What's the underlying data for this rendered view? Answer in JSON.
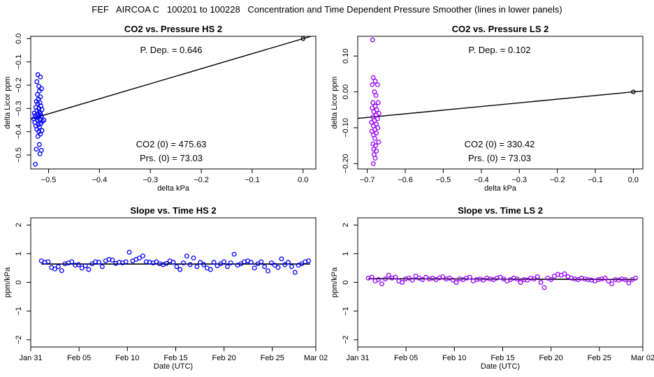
{
  "page_title": "FEF   AIRCOA C   100201 to 100228   Concentration and Time Dependent Pressure Smoother (lines in lower panels)",
  "colors": {
    "hs": "#0000ff",
    "ls": "#9900ff",
    "fit": "#000000"
  },
  "chart_data": [
    {
      "id": "p1",
      "type": "scatter",
      "title": "CO2 vs. Pressure HS 2",
      "xlabel": "delta kPa",
      "ylabel": "delta Licor ppm",
      "xlim": [
        -0.535,
        0.025
      ],
      "ylim": [
        -0.56,
        0.01
      ],
      "xticks": [
        -0.5,
        -0.4,
        -0.3,
        -0.2,
        -0.1,
        0.0
      ],
      "xtick_labels": [
        "−0.5",
        "−0.4",
        "−0.3",
        "−0.2",
        "−0.1",
        "0.0"
      ],
      "yticks": [
        0.0,
        -0.1,
        -0.2,
        -0.3,
        -0.4,
        -0.5
      ],
      "ytick_labels": [
        "0.0",
        "−0.1",
        "−0.2",
        "−0.3",
        "−0.4",
        "−0.5"
      ],
      "annotations": [
        "P. Dep. =  0.646",
        "CO2 (0) =  475.63",
        "Prs. (0) =  73.03"
      ],
      "fit_line": {
        "slope": 0.646,
        "intercept": 0.0
      },
      "anchor_point": [
        0.0,
        0.0
      ],
      "series": [
        {
          "name": "HS 2",
          "color": "hs",
          "points": [
            [
              -0.521,
              -0.155
            ],
            [
              -0.516,
              -0.165
            ],
            [
              -0.523,
              -0.185
            ],
            [
              -0.519,
              -0.205
            ],
            [
              -0.514,
              -0.215
            ],
            [
              -0.518,
              -0.225
            ],
            [
              -0.522,
              -0.24
            ],
            [
              -0.516,
              -0.25
            ],
            [
              -0.52,
              -0.26
            ],
            [
              -0.524,
              -0.27
            ],
            [
              -0.517,
              -0.275
            ],
            [
              -0.521,
              -0.28
            ],
            [
              -0.515,
              -0.29
            ],
            [
              -0.525,
              -0.295
            ],
            [
              -0.519,
              -0.3
            ],
            [
              -0.513,
              -0.305
            ],
            [
              -0.523,
              -0.31
            ],
            [
              -0.518,
              -0.315
            ],
            [
              -0.528,
              -0.32
            ],
            [
              -0.516,
              -0.322
            ],
            [
              -0.521,
              -0.325
            ],
            [
              -0.526,
              -0.33
            ],
            [
              -0.514,
              -0.333
            ],
            [
              -0.519,
              -0.335
            ],
            [
              -0.524,
              -0.34
            ],
            [
              -0.529,
              -0.345
            ],
            [
              -0.517,
              -0.348
            ],
            [
              -0.522,
              -0.35
            ],
            [
              -0.512,
              -0.355
            ],
            [
              -0.527,
              -0.36
            ],
            [
              -0.515,
              -0.365
            ],
            [
              -0.52,
              -0.37
            ],
            [
              -0.525,
              -0.375
            ],
            [
              -0.518,
              -0.38
            ],
            [
              -0.523,
              -0.39
            ],
            [
              -0.513,
              -0.395
            ],
            [
              -0.519,
              -0.4
            ],
            [
              -0.516,
              -0.41
            ],
            [
              -0.521,
              -0.42
            ],
            [
              -0.518,
              -0.455
            ],
            [
              -0.514,
              -0.48
            ],
            [
              -0.524,
              -0.475
            ],
            [
              -0.517,
              -0.495
            ],
            [
              -0.526,
              -0.54
            ],
            [
              -0.509,
              -0.35
            ]
          ]
        }
      ]
    },
    {
      "id": "p2",
      "type": "scatter",
      "title": "CO2 vs. Pressure LS 2",
      "xlabel": "delta kPa",
      "ylabel": "delta Licor ppm",
      "xlim": [
        -0.725,
        0.025
      ],
      "ylim": [
        -0.215,
        0.155
      ],
      "xticks": [
        -0.7,
        -0.6,
        -0.5,
        -0.4,
        -0.3,
        -0.2,
        -0.1,
        0.0
      ],
      "xtick_labels": [
        "−0.7",
        "−0.6",
        "−0.5",
        "−0.4",
        "−0.3",
        "−0.2",
        "−0.1",
        "0.0"
      ],
      "yticks": [
        0.1,
        0.0,
        -0.1,
        -0.2
      ],
      "ytick_labels": [
        "0.10",
        "0.00",
        "−0.10",
        "−0.20"
      ],
      "annotations": [
        "P. Dep. =  0.102",
        "CO2 (0) =  330.42",
        "Prs. (0) =  73.03"
      ],
      "fit_line": {
        "slope": 0.102,
        "intercept": 0.0
      },
      "anchor_point": [
        0.0,
        0.0
      ],
      "series": [
        {
          "name": "LS 2",
          "color": "ls",
          "points": [
            [
              -0.686,
              0.145
            ],
            [
              -0.684,
              0.04
            ],
            [
              -0.679,
              0.03
            ],
            [
              -0.687,
              0.02
            ],
            [
              -0.673,
              0.02
            ],
            [
              -0.681,
              0.0
            ],
            [
              -0.677,
              -0.01
            ],
            [
              -0.685,
              -0.03
            ],
            [
              -0.671,
              -0.03
            ],
            [
              -0.679,
              -0.04
            ],
            [
              -0.687,
              -0.045
            ],
            [
              -0.675,
              -0.05
            ],
            [
              -0.683,
              -0.055
            ],
            [
              -0.669,
              -0.06
            ],
            [
              -0.677,
              -0.065
            ],
            [
              -0.685,
              -0.07
            ],
            [
              -0.673,
              -0.075
            ],
            [
              -0.681,
              -0.08
            ],
            [
              -0.689,
              -0.085
            ],
            [
              -0.676,
              -0.09
            ],
            [
              -0.684,
              -0.095
            ],
            [
              -0.672,
              -0.1
            ],
            [
              -0.68,
              -0.105
            ],
            [
              -0.688,
              -0.11
            ],
            [
              -0.676,
              -0.115
            ],
            [
              -0.684,
              -0.12
            ],
            [
              -0.68,
              -0.13
            ],
            [
              -0.67,
              -0.14
            ],
            [
              -0.685,
              -0.145
            ],
            [
              -0.678,
              -0.15
            ],
            [
              -0.683,
              -0.16
            ],
            [
              -0.676,
              -0.165
            ],
            [
              -0.682,
              -0.175
            ],
            [
              -0.679,
              -0.185
            ],
            [
              -0.684,
              -0.2
            ]
          ]
        }
      ]
    },
    {
      "id": "p3",
      "type": "scatter",
      "title": "Slope vs. Time HS 2",
      "xlabel": "Date (UTC)",
      "ylabel": "ppm/kPa",
      "xlim": [
        0,
        29.5
      ],
      "ylim": [
        -2.25,
        2.25
      ],
      "xticks": [
        0,
        5,
        10,
        15,
        20,
        25,
        29.5
      ],
      "xtick_labels": [
        "Jan 31",
        "Feb 05",
        "Feb 10",
        "Feb 15",
        "Feb 20",
        "Feb 25",
        "Mar 02"
      ],
      "yticks": [
        -2,
        -1,
        0,
        1,
        2
      ],
      "ytick_labels": [
        "−2",
        "−1",
        "0",
        "1",
        "2"
      ],
      "smoother": {
        "x": [
          1.1,
          28.9
        ],
        "y": [
          0.64,
          0.64
        ]
      },
      "series": [
        {
          "name": "HS 2",
          "color": "hs",
          "x": [
            1.1,
            1.45,
            1.8,
            2.15,
            2.5,
            2.85,
            3.2,
            3.55,
            3.9,
            4.25,
            4.6,
            4.95,
            5.3,
            5.65,
            6.0,
            6.35,
            6.7,
            7.05,
            7.4,
            7.75,
            8.1,
            8.45,
            8.8,
            9.15,
            9.5,
            9.85,
            10.2,
            10.55,
            10.9,
            11.25,
            11.6,
            11.95,
            12.3,
            12.65,
            13.0,
            13.35,
            13.7,
            14.05,
            14.4,
            14.75,
            15.1,
            15.45,
            15.8,
            16.15,
            16.5,
            16.85,
            17.2,
            17.55,
            17.9,
            18.25,
            18.6,
            18.95,
            19.3,
            19.65,
            20.0,
            20.35,
            20.7,
            21.05,
            21.4,
            21.75,
            22.1,
            22.45,
            22.8,
            23.15,
            23.5,
            23.85,
            24.2,
            24.55,
            24.9,
            25.25,
            25.6,
            25.95,
            26.3,
            26.65,
            27.0,
            27.35,
            27.7,
            28.05,
            28.4,
            28.75
          ],
          "values": [
            0.75,
            0.7,
            0.72,
            0.52,
            0.47,
            0.55,
            0.41,
            0.65,
            0.68,
            0.72,
            0.6,
            0.62,
            0.5,
            0.58,
            0.45,
            0.65,
            0.72,
            0.7,
            0.55,
            0.75,
            0.8,
            0.78,
            0.66,
            0.7,
            0.68,
            0.72,
            1.05,
            0.75,
            0.8,
            0.85,
            0.92,
            0.72,
            0.7,
            0.68,
            0.72,
            0.65,
            0.62,
            0.66,
            0.75,
            0.7,
            0.55,
            0.45,
            0.68,
            0.92,
            0.62,
            0.85,
            0.55,
            0.7,
            0.62,
            0.5,
            0.45,
            0.7,
            0.58,
            0.65,
            0.72,
            0.55,
            0.68,
            0.98,
            0.6,
            0.65,
            0.72,
            0.75,
            0.7,
            0.5,
            0.65,
            0.72,
            0.55,
            0.4,
            0.68,
            0.6,
            0.52,
            0.82,
            0.62,
            0.7,
            0.55,
            0.35,
            0.6,
            0.65,
            0.72,
            0.75
          ]
        }
      ]
    },
    {
      "id": "p4",
      "type": "scatter",
      "title": "Slope vs. Time LS 2",
      "xlabel": "Date (UTC)",
      "ylabel": "ppm/kPa",
      "xlim": [
        0,
        29.5
      ],
      "ylim": [
        -2.25,
        2.25
      ],
      "xticks": [
        0,
        5,
        10,
        15,
        20,
        25,
        29.5
      ],
      "xtick_labels": [
        "Jan 31",
        "Feb 05",
        "Feb 10",
        "Feb 15",
        "Feb 20",
        "Feb 25",
        "Mar 02"
      ],
      "yticks": [
        -2,
        -1,
        0,
        1,
        2
      ],
      "ytick_labels": [
        "−2",
        "−1",
        "0",
        "1",
        "2"
      ],
      "smoother": {
        "x": [
          1.1,
          28.9
        ],
        "y": [
          0.13,
          0.1
        ]
      },
      "series": [
        {
          "name": "LS 2",
          "color": "ls",
          "x": [
            1.1,
            1.45,
            1.8,
            2.15,
            2.5,
            2.85,
            3.2,
            3.55,
            3.9,
            4.25,
            4.6,
            4.95,
            5.3,
            5.65,
            6.0,
            6.35,
            6.7,
            7.05,
            7.4,
            7.75,
            8.1,
            8.45,
            8.8,
            9.15,
            9.5,
            9.85,
            10.2,
            10.55,
            10.9,
            11.25,
            11.6,
            11.95,
            12.3,
            12.65,
            13.0,
            13.35,
            13.7,
            14.05,
            14.4,
            14.75,
            15.1,
            15.45,
            15.8,
            16.15,
            16.5,
            16.85,
            17.2,
            17.55,
            17.9,
            18.25,
            18.6,
            18.95,
            19.3,
            19.65,
            20.0,
            20.35,
            20.7,
            21.05,
            21.4,
            21.75,
            22.1,
            22.45,
            22.8,
            23.15,
            23.5,
            23.85,
            24.2,
            24.55,
            24.9,
            25.25,
            25.6,
            25.95,
            26.3,
            26.65,
            27.0,
            27.35,
            27.7,
            28.05,
            28.4,
            28.75
          ],
          "values": [
            0.15,
            0.18,
            0.05,
            0.1,
            -0.05,
            0.12,
            0.25,
            0.15,
            0.18,
            0.05,
            0.0,
            0.12,
            0.15,
            0.08,
            0.22,
            0.15,
            0.1,
            0.18,
            0.12,
            0.15,
            0.1,
            0.16,
            0.2,
            0.12,
            0.15,
            0.08,
            0.0,
            0.12,
            0.1,
            0.15,
            0.18,
            0.05,
            0.1,
            0.12,
            0.08,
            0.15,
            0.12,
            0.1,
            0.15,
            0.18,
            0.12,
            0.05,
            0.1,
            0.15,
            0.12,
            0.0,
            0.1,
            0.08,
            0.15,
            0.12,
            0.2,
            0.0,
            -0.18,
            0.15,
            0.1,
            0.22,
            0.28,
            0.25,
            0.3,
            0.2,
            0.15,
            0.12,
            0.1,
            0.15,
            0.12,
            0.1,
            0.08,
            0.05,
            0.1,
            0.12,
            0.15,
            0.05,
            -0.05,
            0.1,
            0.08,
            0.12,
            0.1,
            -0.02,
            0.1,
            0.15
          ]
        }
      ]
    }
  ]
}
